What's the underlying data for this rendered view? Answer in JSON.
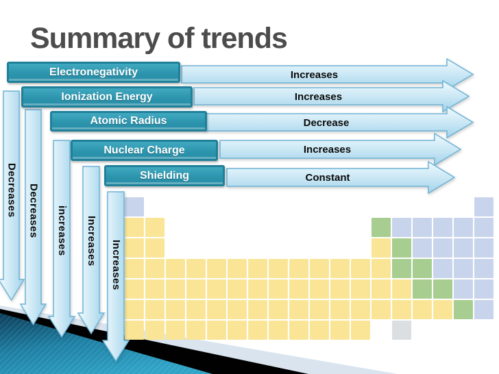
{
  "title": "Summary of trends",
  "trends": [
    {
      "property": "Electronegativity",
      "across_period": "Increases",
      "down_group": "Decreases"
    },
    {
      "property": "Ionization Energy",
      "across_period": "Increases",
      "down_group": "Decreases"
    },
    {
      "property": "Atomic Radius",
      "across_period": "Decrease",
      "down_group": "increases"
    },
    {
      "property": "Nuclear Charge",
      "across_period": "Increases",
      "down_group": "Increases"
    },
    {
      "property": "Shielding",
      "across_period": "Constant",
      "down_group": "Increases"
    }
  ],
  "periodic_table": {
    "cell_types": {
      "m": "metal",
      "n": "nonmetal",
      "g": "metalloid",
      "u": "unknown"
    },
    "colors": {
      "m": "#FAE596",
      "n": "#C8D4EC",
      "g": "#A7CE90",
      "u": "#DCDFE1"
    },
    "rows": [
      "n................n",
      "mm..........gnnnnn",
      "mm..........mgnnnn",
      "mmmmmmmmmmmmmggnnn",
      "mmmmmmmmmmmmmmggnn",
      "mmmmmmmmmmmmmmmmgn",
      "mmmmmmmmmmmm.u...."
    ]
  },
  "colors": {
    "title_text": "#4C4C4C",
    "label_box": "#2E99B3",
    "label_box_border": "#1F8099",
    "label_text": "#FFFFFF",
    "arrow_fill_light": "#F0FAFD",
    "arrow_fill_dark": "#A3D3EA",
    "arrow_border": "#6FB3D6",
    "arrow_text": "#0A0A0A",
    "corner_pale": "#D9E4EE",
    "corner_black": "#010101",
    "corner_teal_dark": "#0B3C58",
    "corner_teal_bright": "#2FA3C6"
  }
}
